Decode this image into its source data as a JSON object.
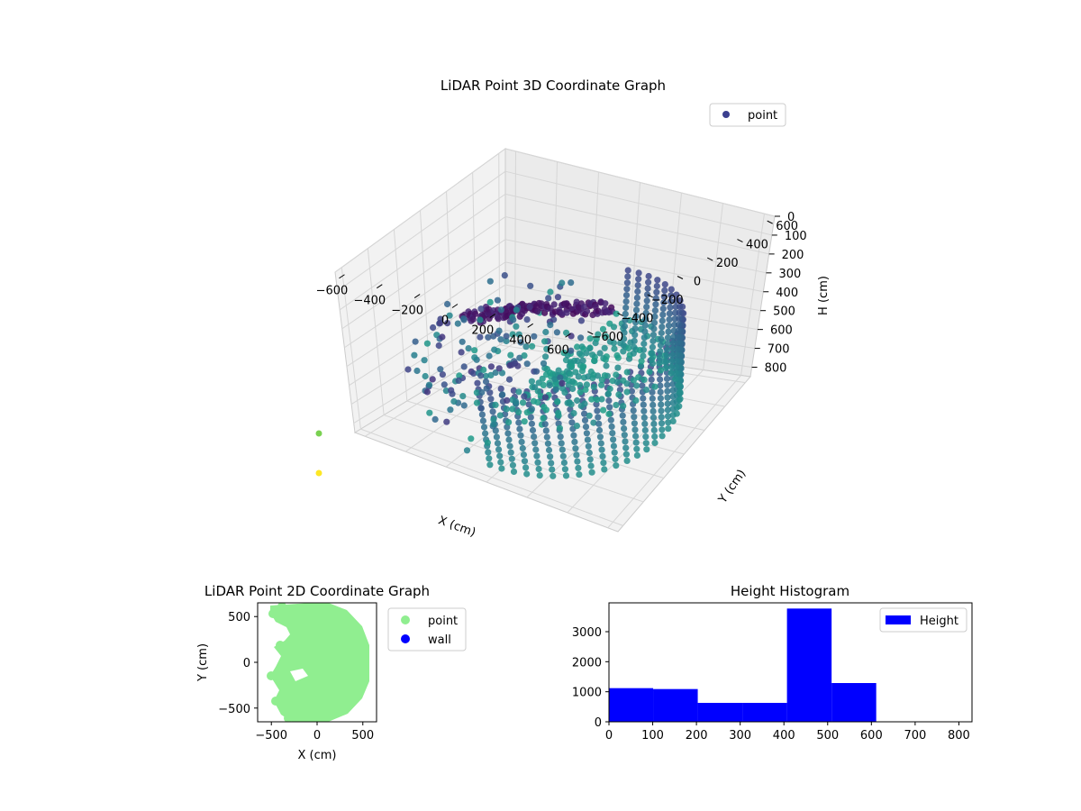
{
  "chart_data": [
    {
      "type": "scatter3d",
      "title": "LiDAR Point 3D Coordinate Graph",
      "xlabel": "X (cm)",
      "ylabel": "Y (cm)",
      "zlabel": "H (cm)",
      "x_ticks": [
        "−600",
        "−400",
        "−200",
        "0",
        "200",
        "400",
        "600"
      ],
      "y_ticks": [
        "−600",
        "−400",
        "−200",
        "0",
        "200",
        "400",
        "600"
      ],
      "z_ticks": [
        "0",
        "100",
        "200",
        "300",
        "400",
        "500",
        "600",
        "700",
        "800"
      ],
      "xlim": [
        -650,
        650
      ],
      "ylim": [
        -650,
        650
      ],
      "zlim": [
        0,
        850
      ],
      "z_inverted": true,
      "colormap": "viridis",
      "legend": {
        "entries": [
          {
            "label": "point",
            "color": "#3b3f8f"
          }
        ],
        "placement": "top-right"
      },
      "cylinder": {
        "radius": 600,
        "angle_range_deg": [
          -90,
          90
        ],
        "height_range": [
          400,
          800
        ]
      },
      "stray_points": [
        {
          "x": -700,
          "y": -700,
          "z": 150,
          "color": "#7ad151"
        },
        {
          "x": -700,
          "y": -700,
          "z": 0,
          "color": "#fde725"
        }
      ]
    },
    {
      "type": "scatter",
      "title": "LiDAR Point 2D Coordinate Graph",
      "xlabel": "X (cm)",
      "ylabel": "Y (cm)",
      "x_ticks": [
        "−500",
        "0",
        "500"
      ],
      "y_ticks": [
        "−500",
        "0",
        "500"
      ],
      "xlim": [
        -650,
        650
      ],
      "ylim": [
        -650,
        650
      ],
      "series": [
        {
          "name": "point",
          "color": "#90ee90"
        },
        {
          "name": "wall",
          "color": "#0000ff"
        }
      ],
      "legend_placement": "outside-right"
    },
    {
      "type": "bar",
      "title": "Height Histogram",
      "bins": [
        {
          "start": 0,
          "end": 101,
          "count": 1120
        },
        {
          "start": 101,
          "end": 203,
          "count": 1090
        },
        {
          "start": 203,
          "end": 305,
          "count": 630
        },
        {
          "start": 305,
          "end": 407,
          "count": 630
        },
        {
          "start": 407,
          "end": 509,
          "count": 3770
        },
        {
          "start": 509,
          "end": 611,
          "count": 1290
        }
      ],
      "x_ticks": [
        "0",
        "100",
        "200",
        "300",
        "400",
        "500",
        "600",
        "700",
        "800"
      ],
      "y_ticks": [
        "0",
        "1000",
        "2000",
        "3000"
      ],
      "xlim": [
        0,
        830
      ],
      "ylim": [
        0,
        3960
      ],
      "bar_color": "#0000ff",
      "legend": {
        "entries": [
          {
            "label": "Height",
            "color": "#0000ff"
          }
        ],
        "placement": "top-right"
      }
    }
  ]
}
